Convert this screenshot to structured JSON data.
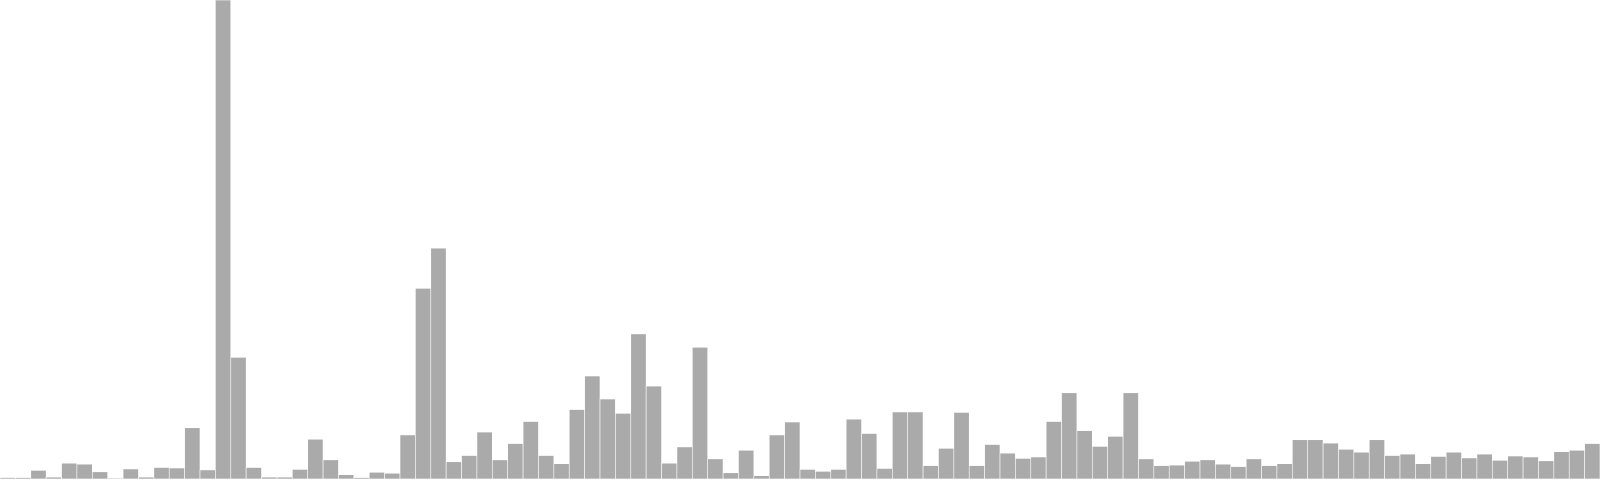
{
  "chart_data": {
    "type": "bar",
    "title": "",
    "xlabel": "",
    "ylabel": "",
    "grid": false,
    "legend": "none",
    "ylim": [
      0,
      1000
    ],
    "bar_color": "#aaaaaa",
    "bar_edge_color": "#ffffff",
    "values": [
      3,
      3,
      18,
      4,
      33,
      31,
      15,
      2,
      21,
      4,
      24,
      23,
      107,
      19,
      1000,
      254,
      24,
      4,
      4,
      20,
      83,
      40,
      9,
      3,
      14,
      12,
      92,
      398,
      482,
      36,
      49,
      98,
      40,
      74,
      120,
      49,
      32,
      145,
      215,
      167,
      137,
      303,
      194,
      33,
      67,
      275,
      42,
      13,
      60,
      7,
      92,
      119,
      20,
      16,
      20,
      125,
      95,
      22,
      140,
      140,
      28,
      64,
      139,
      28,
      72,
      54,
      43,
      46,
      120,
      180,
      101,
      68,
      89,
      180,
      42,
      28,
      29,
      37,
      40,
      31,
      26,
      42,
      28,
      32,
      82,
      82,
      75,
      62,
      56,
      82,
      49,
      52,
      32,
      47,
      56,
      44,
      52,
      39,
      48,
      46,
      38,
      57,
      60,
      74
    ]
  }
}
